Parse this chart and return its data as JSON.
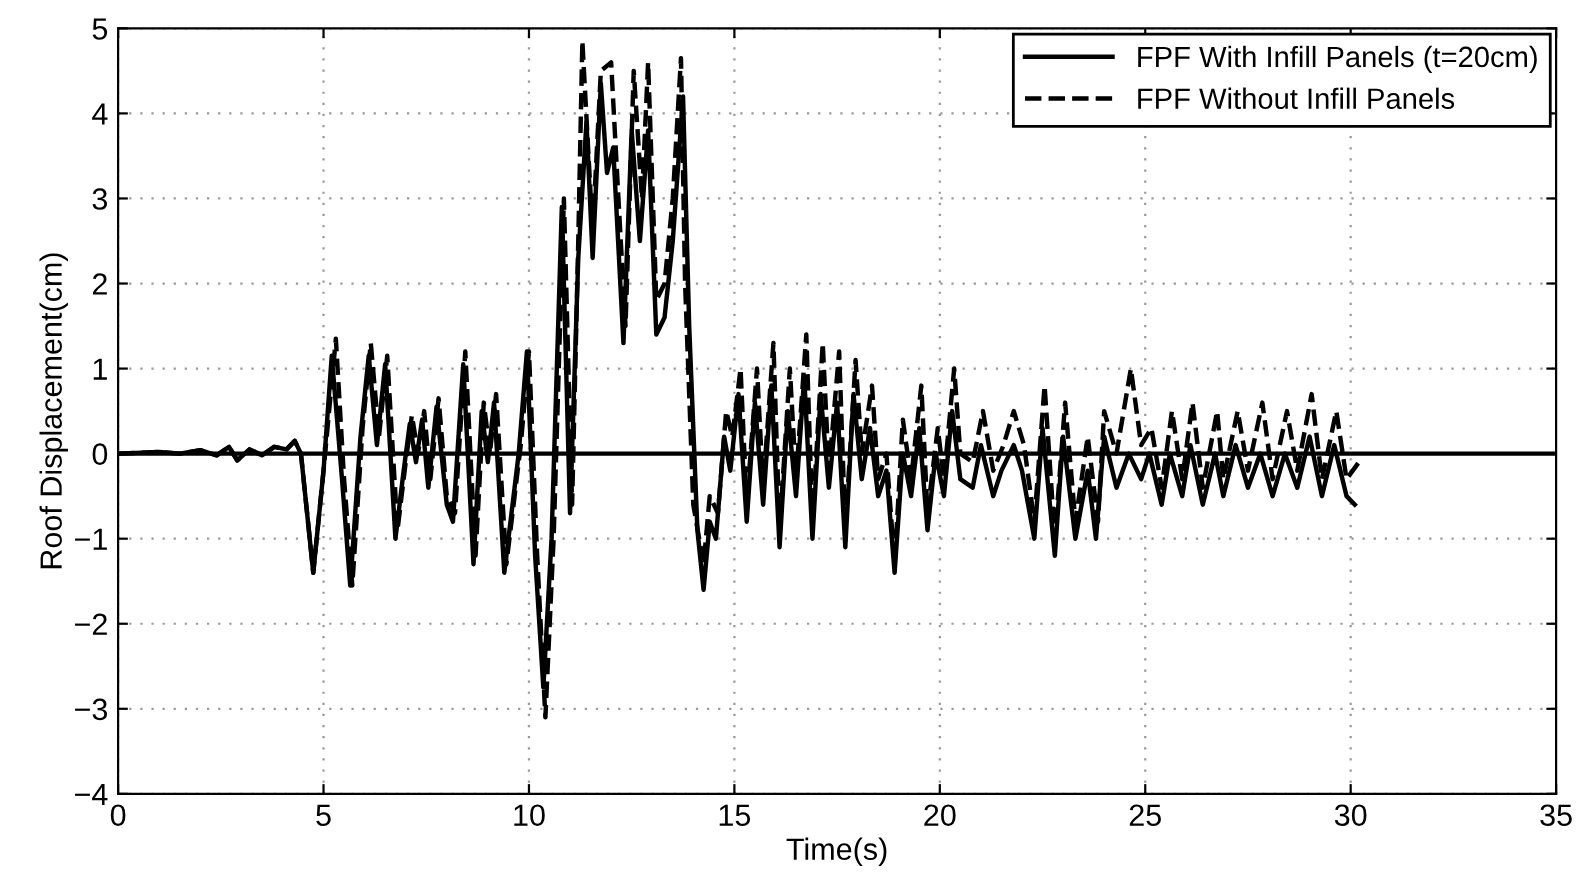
{
  "chart_data": {
    "type": "line",
    "xlabel": "Time(s)",
    "ylabel": "Roof Displacement(cm)",
    "xlim": [
      0,
      35
    ],
    "ylim": [
      -4,
      5
    ],
    "xticks": [
      0,
      5,
      10,
      15,
      20,
      25,
      30,
      35
    ],
    "yticks": [
      -4,
      -3,
      -2,
      -1,
      0,
      1,
      2,
      3,
      4,
      5
    ],
    "grid": true,
    "legend": "top right",
    "marker": "none",
    "ref_lines": [
      {
        "axis": "y",
        "value": 0,
        "color": "#000000",
        "line_style": "solid"
      }
    ],
    "series": [
      {
        "name": "FPF With Infill Panels (t=20cm)",
        "color": "#000000",
        "line_style": "solid",
        "x": [
          0,
          1,
          1.5,
          2,
          2.4,
          2.7,
          2.9,
          3.2,
          3.5,
          3.8,
          4.1,
          4.3,
          4.45,
          4.75,
          5.0,
          5.2,
          5.45,
          5.65,
          5.9,
          6.1,
          6.3,
          6.5,
          6.75,
          6.95,
          7.1,
          7.25,
          7.4,
          7.55,
          7.75,
          8.0,
          8.15,
          8.4,
          8.65,
          8.85,
          9.0,
          9.15,
          9.4,
          9.6,
          9.75,
          9.95,
          10.15,
          10.35,
          10.55,
          10.8,
          11.0,
          11.2,
          11.4,
          11.55,
          11.75,
          11.9,
          12.05,
          12.3,
          12.5,
          12.7,
          12.9,
          13.1,
          13.3,
          13.5,
          13.75,
          13.9,
          14.1,
          14.25,
          14.4,
          14.55,
          14.75,
          14.9,
          15.1,
          15.3,
          15.5,
          15.7,
          15.9,
          16.1,
          16.3,
          16.5,
          16.7,
          16.9,
          17.1,
          17.3,
          17.5,
          17.7,
          17.9,
          18.1,
          18.3,
          18.5,
          18.7,
          18.9,
          19.1,
          19.3,
          19.5,
          19.7,
          19.9,
          20.1,
          20.3,
          20.5,
          20.8,
          21.0,
          21.3,
          21.5,
          21.8,
          22.0,
          22.3,
          22.5,
          22.8,
          23.0,
          23.3,
          23.6,
          23.8,
          24.0,
          24.3,
          24.6,
          24.9,
          25.1,
          25.4,
          25.6,
          25.9,
          26.1,
          26.4,
          26.7,
          26.9,
          27.2,
          27.5,
          27.8,
          28.1,
          28.4,
          28.7,
          29.0,
          29.3,
          29.6,
          29.9,
          30.1
        ],
        "values": [
          0,
          0.02,
          0,
          0.04,
          -0.02,
          0.08,
          -0.08,
          0.05,
          -0.02,
          0.08,
          0.05,
          0.15,
          0,
          -1.4,
          -0.2,
          1.15,
          -0.3,
          -1.55,
          0.2,
          1.15,
          0.1,
          1.05,
          -1.0,
          -0.2,
          0.35,
          -0.1,
          0.4,
          -0.4,
          0.55,
          -0.6,
          -0.8,
          1.05,
          -1.3,
          0.5,
          -0.1,
          0.6,
          -1.4,
          -0.6,
          0,
          1.2,
          -1.2,
          -2.75,
          -1.0,
          2.9,
          -0.7,
          2.3,
          3.9,
          2.3,
          4.35,
          3.3,
          3.6,
          1.3,
          3.8,
          2.5,
          3.8,
          1.4,
          1.6,
          2.5,
          4.2,
          1.5,
          -0.9,
          -1.6,
          -0.8,
          -1.0,
          0.2,
          -0.2,
          0.7,
          -0.8,
          0.6,
          -0.6,
          0.8,
          -1.1,
          0.5,
          -0.5,
          0.9,
          -1.0,
          0.7,
          -0.4,
          0.6,
          -1.1,
          0.7,
          -0.3,
          0.3,
          -0.5,
          -0.2,
          -1.4,
          0,
          -0.5,
          0.3,
          -0.9,
          0,
          -0.5,
          0.5,
          -0.3,
          -0.4,
          0.1,
          -0.5,
          -0.2,
          0.1,
          -0.2,
          -1.0,
          0.3,
          -1.2,
          0.2,
          -1.0,
          -0.2,
          -1.0,
          0.2,
          -0.4,
          0,
          -0.3,
          0,
          -0.6,
          0,
          -0.5,
          0.1,
          -0.6,
          0,
          -0.5,
          0.1,
          -0.4,
          0,
          -0.5,
          0,
          -0.4,
          0.2,
          -0.5,
          0.1,
          -0.5,
          -0.6
        ]
      },
      {
        "name": "FPF Without Infill Panels",
        "color": "#000000",
        "line_style": "dashed",
        "x": [
          0,
          1,
          1.5,
          2,
          2.4,
          2.7,
          2.9,
          3.2,
          3.5,
          3.8,
          4.1,
          4.3,
          4.45,
          4.75,
          5.0,
          5.3,
          5.5,
          5.7,
          5.95,
          6.15,
          6.35,
          6.55,
          6.8,
          7.0,
          7.15,
          7.3,
          7.45,
          7.6,
          7.8,
          8.0,
          8.2,
          8.45,
          8.7,
          8.9,
          9.05,
          9.2,
          9.45,
          9.65,
          9.8,
          10.0,
          10.2,
          10.4,
          10.6,
          10.85,
          11.05,
          11.2,
          11.3,
          11.55,
          11.75,
          12.0,
          12.2,
          12.35,
          12.55,
          12.75,
          12.9,
          13.1,
          13.3,
          13.5,
          13.7,
          13.8,
          14.0,
          14.25,
          14.4,
          14.6,
          14.8,
          14.95,
          15.15,
          15.3,
          15.55,
          15.7,
          15.95,
          16.1,
          16.35,
          16.5,
          16.75,
          16.9,
          17.15,
          17.3,
          17.55,
          17.7,
          17.95,
          18.1,
          18.35,
          18.5,
          18.7,
          18.9,
          19.1,
          19.3,
          19.55,
          19.7,
          19.95,
          20.1,
          20.35,
          20.5,
          20.8,
          21.05,
          21.3,
          21.55,
          21.8,
          22.05,
          22.3,
          22.55,
          22.8,
          23.05,
          23.3,
          23.6,
          23.85,
          24.0,
          24.3,
          24.65,
          24.9,
          25.15,
          25.4,
          25.65,
          25.9,
          26.15,
          26.4,
          26.75,
          26.9,
          27.25,
          27.5,
          27.85,
          28.1,
          28.45,
          28.7,
          29.05,
          29.3,
          29.65,
          29.9,
          30.2
        ],
        "values": [
          0,
          0.02,
          0,
          0.04,
          -0.02,
          0.08,
          -0.08,
          0.05,
          -0.02,
          0.08,
          0.05,
          0.15,
          0,
          -1.4,
          -0.2,
          1.35,
          -0.3,
          -1.55,
          0.3,
          1.3,
          0.2,
          1.15,
          -0.9,
          -0.1,
          0.45,
          0,
          0.5,
          -0.3,
          0.65,
          -0.5,
          -0.7,
          1.2,
          -1.2,
          0.6,
          0,
          0.7,
          -1.3,
          -0.5,
          0.1,
          1.2,
          -1.2,
          -3.1,
          -1.0,
          3.0,
          -0.6,
          2.5,
          4.85,
          2.6,
          4.5,
          4.6,
          2.8,
          1.5,
          4.5,
          3.0,
          4.6,
          1.8,
          2.0,
          3.0,
          4.65,
          2.0,
          -0.6,
          -1.3,
          -0.5,
          -0.7,
          0.5,
          0.2,
          1.0,
          -0.6,
          1.0,
          -0.4,
          1.3,
          -0.9,
          1.0,
          -0.3,
          1.4,
          -0.8,
          1.3,
          -0.2,
          1.2,
          -0.9,
          1.1,
          0,
          0.8,
          -0.3,
          0,
          -1.3,
          0.4,
          -0.3,
          0.8,
          -0.7,
          0.3,
          -0.3,
          1.0,
          0,
          -0.1,
          0.5,
          -0.2,
          0.1,
          0.5,
          0.1,
          -0.8,
          0.8,
          -1.0,
          0.6,
          -0.8,
          0.2,
          -0.8,
          0.5,
          0,
          1.0,
          0.1,
          0.3,
          -0.4,
          0.5,
          -0.3,
          0.6,
          -0.4,
          0.5,
          -0.3,
          0.5,
          -0.2,
          0.6,
          -0.3,
          0.5,
          -0.2,
          0.7,
          -0.3,
          0.5,
          -0.3,
          -0.1
        ]
      }
    ]
  }
}
